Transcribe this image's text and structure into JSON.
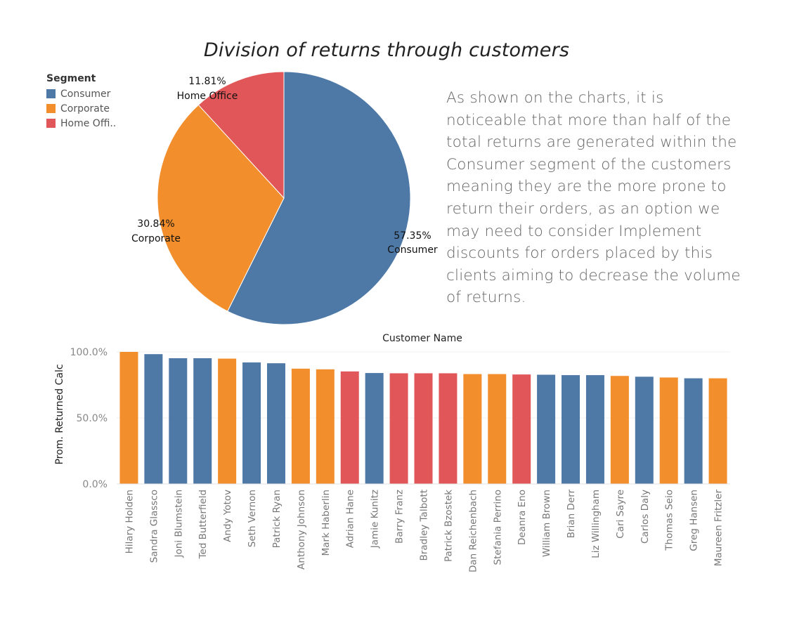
{
  "title": "Division of returns through customers",
  "legend": {
    "title": "Segment",
    "items": [
      {
        "label": "Consumer",
        "color": "#4e79a7"
      },
      {
        "label": "Corporate",
        "color": "#f28e2b"
      },
      {
        "label": "Home Offi..",
        "color": "#e15759"
      }
    ]
  },
  "commentary": "As shown on the charts, it is noticeable that more than half of the total returns are generated within the Consumer segment of the customers meaning they are the more prone to return their orders, as an option we may need to consider Implement discounts for orders placed by this clients aiming to decrease the volume of returns.",
  "chart_data": [
    {
      "type": "pie",
      "slices": [
        {
          "label": "Consumer",
          "value": 57.35,
          "display": "57.35%",
          "color": "#4e79a7"
        },
        {
          "label": "Corporate",
          "value": 30.84,
          "display": "30.84%",
          "color": "#f28e2b"
        },
        {
          "label": "Home Office",
          "value": 11.81,
          "display": "11.81%",
          "color": "#e15759"
        }
      ]
    },
    {
      "type": "bar",
      "xlabel": "Customer Name",
      "ylabel": "Prom. Returned Calc",
      "ylim": [
        0,
        100
      ],
      "yticks": [
        {
          "value": 0,
          "label": "0.0%"
        },
        {
          "value": 50,
          "label": "50.0%"
        },
        {
          "value": 100,
          "label": "100.0%"
        }
      ],
      "grid": true,
      "categories": [
        "Hilary Holden",
        "Sandra Glassco",
        "Joni Blumstein",
        "Ted Butterfield",
        "Andy Yotov",
        "Seth Vernon",
        "Patrick Ryan",
        "Anthony Johnson",
        "Mark Haberlin",
        "Adrian Hane",
        "Jamie Kunitz",
        "Barry Franz",
        "Bradley Talbott",
        "Patrick Bzostek",
        "Dan Reichenbach",
        "Stefania Perrino",
        "Deanra Eno",
        "William Brown",
        "Brian Derr",
        "Liz Willingham",
        "Cari Sayre",
        "Carlos Daly",
        "Thomas Seio",
        "Greg Hansen",
        "Maureen Fritzler"
      ],
      "values": [
        100.0,
        98.3,
        95.2,
        95.2,
        94.9,
        92.0,
        91.4,
        87.3,
        86.8,
        85.2,
        84.0,
        83.8,
        83.8,
        83.8,
        83.2,
        83.2,
        82.9,
        82.7,
        82.4,
        82.4,
        81.8,
        81.2,
        80.6,
        80.0,
        80.0
      ],
      "segments": [
        "Corporate",
        "Consumer",
        "Consumer",
        "Consumer",
        "Corporate",
        "Consumer",
        "Consumer",
        "Corporate",
        "Corporate",
        "Home Office",
        "Consumer",
        "Home Office",
        "Home Office",
        "Home Office",
        "Corporate",
        "Corporate",
        "Home Office",
        "Consumer",
        "Consumer",
        "Consumer",
        "Corporate",
        "Consumer",
        "Corporate",
        "Consumer",
        "Corporate"
      ],
      "segment_colors": {
        "Consumer": "#4e79a7",
        "Corporate": "#f28e2b",
        "Home Office": "#e15759"
      }
    }
  ]
}
